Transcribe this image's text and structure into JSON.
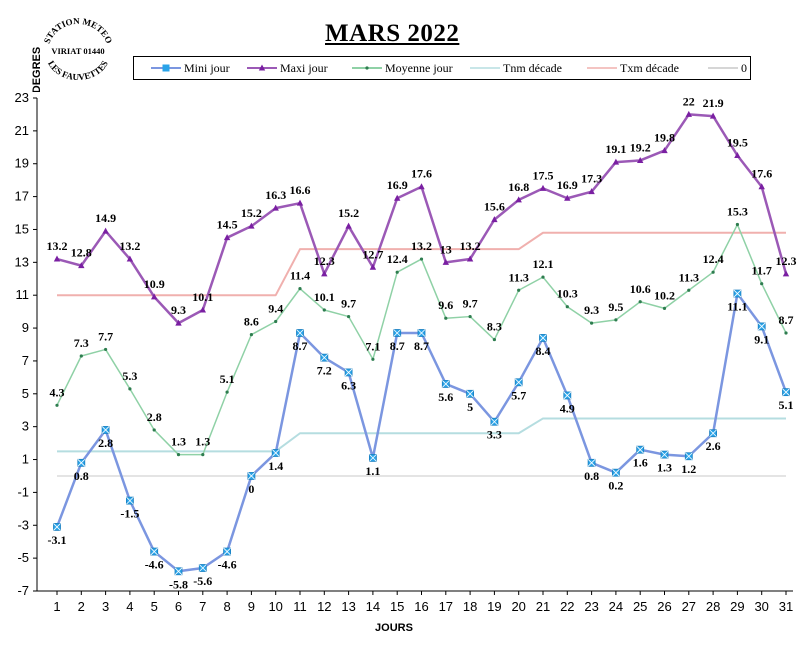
{
  "chart_data": {
    "type": "line",
    "title": "MARS 2022",
    "ylabel": "DEGRES",
    "xlabel": "JOURS",
    "stamp_text": [
      "STATION METEO",
      "VIRIAT 01440",
      "LES FAUVETTES"
    ],
    "ylim": [
      -7,
      23
    ],
    "yticks": [
      23,
      21,
      19,
      17,
      15,
      13,
      11,
      9,
      7,
      5,
      3,
      1,
      -1,
      -3,
      -5,
      -7
    ],
    "x": [
      1,
      2,
      3,
      4,
      5,
      6,
      7,
      8,
      9,
      10,
      11,
      12,
      13,
      14,
      15,
      16,
      17,
      18,
      19,
      20,
      21,
      22,
      23,
      24,
      25,
      26,
      27,
      28,
      29,
      30,
      31
    ],
    "series": [
      {
        "name": "Mini jour",
        "color": "#7b96e0",
        "marker": "square",
        "values": [
          -3.1,
          0.8,
          2.8,
          -1.5,
          -4.6,
          -5.8,
          -5.6,
          -4.6,
          0,
          1.4,
          8.7,
          7.2,
          6.3,
          1.1,
          8.7,
          8.7,
          5.6,
          5,
          3.3,
          5.7,
          8.4,
          4.9,
          0.8,
          0.2,
          1.6,
          1.3,
          1.2,
          2.6,
          11.1,
          9.1,
          5.1
        ],
        "labels": [
          "-3.1",
          "0.8",
          "2.8",
          "-1.5",
          "-4.6",
          "-5.8",
          "-5.6",
          "-4.6",
          "0",
          "1.4",
          "8.7",
          "7.2",
          "6.3",
          "1.1",
          "8.7",
          "8.7",
          "5.6",
          "5",
          "3.3",
          "5.7",
          "8.4",
          "4.9",
          "0.8",
          "0.2",
          "1.6",
          "1.3",
          "1.2",
          "2.6",
          "11.1",
          "9.1",
          "5.1"
        ]
      },
      {
        "name": "Maxi jour",
        "color": "#9b59b6",
        "marker": "triangle",
        "values": [
          13.2,
          12.8,
          14.9,
          13.2,
          10.9,
          9.3,
          10.1,
          14.5,
          15.2,
          16.3,
          16.6,
          12.3,
          15.2,
          12.7,
          16.9,
          17.6,
          13,
          13.2,
          15.6,
          16.8,
          17.5,
          16.9,
          17.3,
          19.1,
          19.2,
          19.8,
          22,
          21.9,
          19.5,
          17.6,
          12.3
        ],
        "labels": [
          "13.2",
          "12.8",
          "14.9",
          "13.2",
          "10.9",
          "9.3",
          "10.1",
          "14.5",
          "15.2",
          "16.3",
          "16.6",
          "12.3",
          "15.2",
          "12.7",
          "16.9",
          "17.6",
          "13",
          "13.2",
          "15.6",
          "16.8",
          "17.5",
          "16.9",
          "17.3",
          "19.1",
          "19.2",
          "19.8",
          "22",
          "21.9",
          "19.5",
          "17.6",
          "12.3"
        ]
      },
      {
        "name": "Moyenne jour",
        "color": "#8fd1a6",
        "marker": "dot",
        "values": [
          4.3,
          7.3,
          7.7,
          5.3,
          2.8,
          1.3,
          1.3,
          5.1,
          8.6,
          9.4,
          11.4,
          10.1,
          9.7,
          7.1,
          12.4,
          13.2,
          9.6,
          9.7,
          8.3,
          11.3,
          12.1,
          10.3,
          9.3,
          9.5,
          10.6,
          10.2,
          11.3,
          12.4,
          15.3,
          11.7,
          8.7
        ],
        "labels": [
          "4.3",
          "7.3",
          "7.7",
          "5.3",
          "2.8",
          "1.3",
          "1.3",
          "5.1",
          "8.6",
          "9.4",
          "11.4",
          "10.1",
          "9.7",
          "7.1",
          "12.4",
          "13.2",
          "9.6",
          "9.7",
          "8.3",
          "11.3",
          "12.1",
          "10.3",
          "9.3",
          "9.5",
          "10.6",
          "10.2",
          "11.3",
          "12.4",
          "15.3",
          "11.7",
          "8.7"
        ]
      },
      {
        "name": "Tnm décade",
        "color": "#b5dde0",
        "marker": "none",
        "values": [
          1.5,
          1.5,
          1.5,
          1.5,
          1.5,
          1.5,
          1.5,
          1.5,
          1.5,
          1.5,
          2.6,
          2.6,
          2.6,
          2.6,
          2.6,
          2.6,
          2.6,
          2.6,
          2.6,
          2.6,
          3.5,
          3.5,
          3.5,
          3.5,
          3.5,
          3.5,
          3.5,
          3.5,
          3.5,
          3.5,
          3.5
        ]
      },
      {
        "name": "Txm décade",
        "color": "#f0b0ae",
        "marker": "none",
        "values": [
          11,
          11,
          11,
          11,
          11,
          11,
          11,
          11,
          11,
          11,
          13.8,
          13.8,
          13.8,
          13.8,
          13.8,
          13.8,
          13.8,
          13.8,
          13.8,
          13.8,
          14.8,
          14.8,
          14.8,
          14.8,
          14.8,
          14.8,
          14.8,
          14.8,
          14.8,
          14.8,
          14.8
        ]
      },
      {
        "name": "0",
        "color": "#c8c8c8",
        "marker": "none",
        "values": [
          0,
          0,
          0,
          0,
          0,
          0,
          0,
          0,
          0,
          0,
          0,
          0,
          0,
          0,
          0,
          0,
          0,
          0,
          0,
          0,
          0,
          0,
          0,
          0,
          0,
          0,
          0,
          0,
          0,
          0,
          0
        ]
      }
    ],
    "grid": false,
    "legend_position": "top"
  }
}
